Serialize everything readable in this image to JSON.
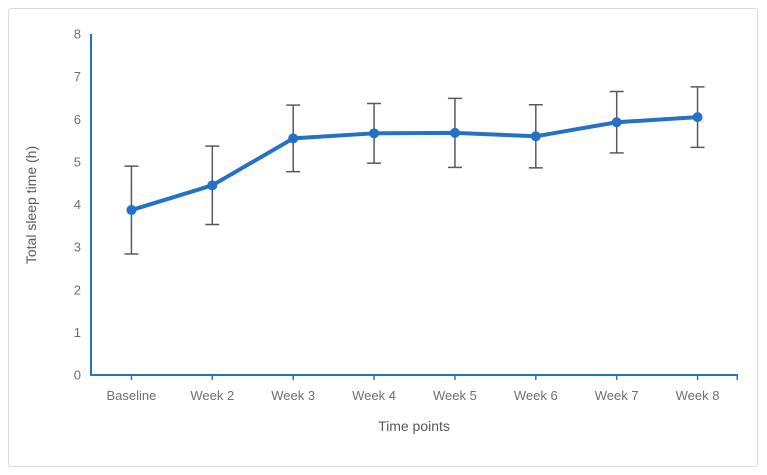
{
  "chart_data": {
    "type": "line",
    "title": "",
    "xlabel": "Time points",
    "ylabel": "Total sleep time (h)",
    "categories": [
      "Baseline",
      "Week 2",
      "Week 3",
      "Week 4",
      "Week 5",
      "Week 6",
      "Week 7",
      "Week 8"
    ],
    "series": [
      {
        "name": "Total sleep time",
        "values": [
          3.87,
          4.45,
          5.55,
          5.67,
          5.68,
          5.6,
          5.93,
          6.05
        ],
        "errors": [
          1.03,
          0.92,
          0.78,
          0.7,
          0.81,
          0.74,
          0.72,
          0.71
        ]
      }
    ],
    "ylim": [
      0,
      8
    ],
    "yticks": [
      0,
      1,
      2,
      3,
      4,
      5,
      6,
      7,
      8
    ],
    "grid": false,
    "legend": "none",
    "marker": "circle",
    "error_bars": true,
    "colors": {
      "line": "#2372C7",
      "marker": "#2372C7",
      "axis": "#2372C7",
      "error_bar": "#595959",
      "tick_label_text": "#6F6F6F",
      "title_text": "#595959",
      "frame_border": "#D9D9D9",
      "background": "#FFFFFF"
    }
  }
}
